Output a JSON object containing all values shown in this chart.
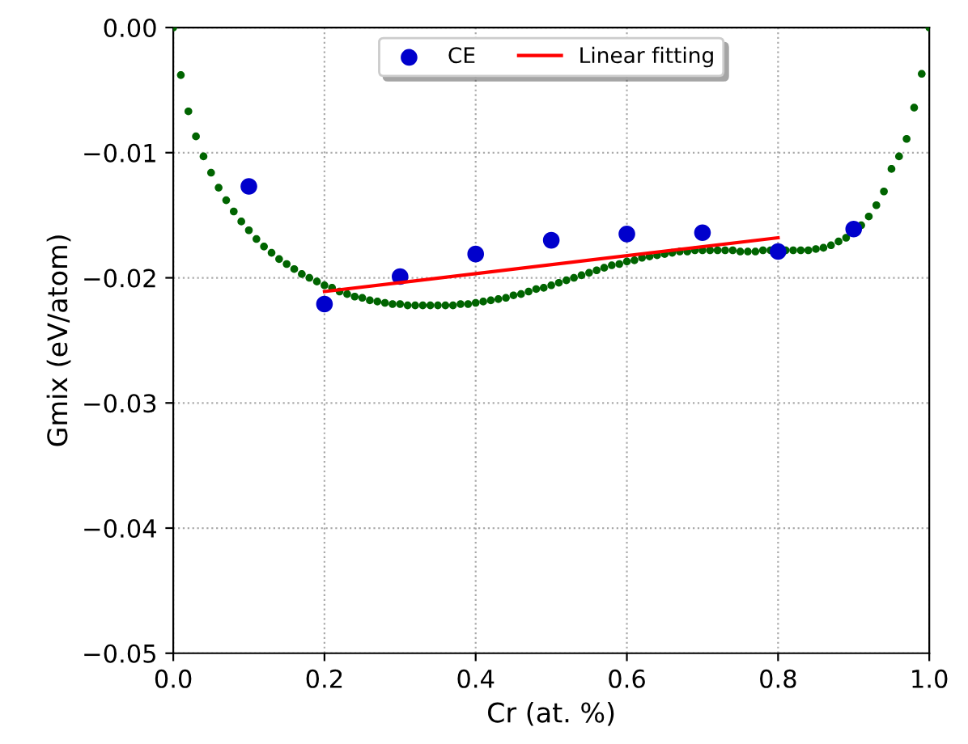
{
  "chart_data": {
    "type": "scatter",
    "xlabel": "Cr (at. %)",
    "ylabel": "Gmix (eV/atom)",
    "xlim": [
      0.0,
      1.0
    ],
    "xticks": [
      {
        "value": 0.0,
        "label": "0.0"
      },
      {
        "value": 0.2,
        "label": "0.2"
      },
      {
        "value": 0.4,
        "label": "0.4"
      },
      {
        "value": 0.6,
        "label": "0.6"
      },
      {
        "value": 0.8,
        "label": "0.8"
      },
      {
        "value": 1.0,
        "label": "1.0"
      }
    ],
    "ylim": [
      -0.05,
      0.0
    ],
    "yticks": [
      {
        "value": -0.05,
        "label": "−0.05"
      },
      {
        "value": -0.04,
        "label": "−0.04"
      },
      {
        "value": -0.03,
        "label": "−0.03"
      },
      {
        "value": -0.02,
        "label": "−0.02"
      },
      {
        "value": -0.01,
        "label": "−0.01"
      },
      {
        "value": 0.0,
        "label": "0.00"
      }
    ],
    "grid": true,
    "legend": "top",
    "series": [
      {
        "name": "CE",
        "marker": "circle",
        "color": "#0000cc",
        "x": [
          0.1,
          0.2,
          0.3,
          0.4,
          0.5,
          0.6,
          0.7,
          0.8,
          0.9
        ],
        "values": [
          -0.0127,
          -0.0221,
          -0.0199,
          -0.0181,
          -0.017,
          -0.0165,
          -0.0164,
          -0.0179,
          -0.0161
        ]
      },
      {
        "name": "Linear fitting",
        "type": "line",
        "color": "#ff0000",
        "line_style": "solid",
        "x": [
          0.2,
          0.8
        ],
        "values": [
          -0.0211,
          -0.0168
        ]
      },
      {
        "marker": "circle",
        "color": "#006400",
        "x": [
          0.0,
          0.01,
          0.02,
          0.03,
          0.04,
          0.05,
          0.06,
          0.07,
          0.08,
          0.09,
          0.1,
          0.11,
          0.12,
          0.13,
          0.14,
          0.15,
          0.16,
          0.17,
          0.18,
          0.19,
          0.2,
          0.21,
          0.22,
          0.23,
          0.24,
          0.25,
          0.26,
          0.27,
          0.28,
          0.29,
          0.3,
          0.31,
          0.32,
          0.33,
          0.34,
          0.35,
          0.36,
          0.37,
          0.38,
          0.39,
          0.4,
          0.41,
          0.42,
          0.43,
          0.44,
          0.45,
          0.46,
          0.47,
          0.48,
          0.49,
          0.5,
          0.51,
          0.52,
          0.53,
          0.54,
          0.55,
          0.56,
          0.57,
          0.58,
          0.59,
          0.6,
          0.61,
          0.62,
          0.63,
          0.64,
          0.65,
          0.66,
          0.67,
          0.68,
          0.69,
          0.7,
          0.71,
          0.72,
          0.73,
          0.74,
          0.75,
          0.76,
          0.77,
          0.78,
          0.79,
          0.8,
          0.81,
          0.82,
          0.83,
          0.84,
          0.85,
          0.86,
          0.87,
          0.88,
          0.89,
          0.9,
          0.91,
          0.92,
          0.93,
          0.94,
          0.95,
          0.96,
          0.97,
          0.98,
          0.99,
          1.0
        ],
        "values": [
          0.0,
          -0.0038,
          -0.0067,
          -0.0087,
          -0.0103,
          -0.0116,
          -0.0128,
          -0.0138,
          -0.0147,
          -0.0155,
          -0.0162,
          -0.0169,
          -0.0175,
          -0.018,
          -0.0185,
          -0.0189,
          -0.0193,
          -0.0197,
          -0.02,
          -0.0203,
          -0.0206,
          -0.0208,
          -0.0211,
          -0.0213,
          -0.0215,
          -0.0216,
          -0.0218,
          -0.0219,
          -0.022,
          -0.0221,
          -0.0221,
          -0.0222,
          -0.0222,
          -0.0222,
          -0.0222,
          -0.0222,
          -0.0222,
          -0.0222,
          -0.0221,
          -0.0221,
          -0.022,
          -0.0219,
          -0.0218,
          -0.0217,
          -0.0216,
          -0.0214,
          -0.0213,
          -0.0211,
          -0.0209,
          -0.0208,
          -0.0206,
          -0.0204,
          -0.0202,
          -0.02,
          -0.0198,
          -0.0196,
          -0.0194,
          -0.0192,
          -0.019,
          -0.0189,
          -0.0187,
          -0.0186,
          -0.0184,
          -0.0183,
          -0.0182,
          -0.0181,
          -0.018,
          -0.0179,
          -0.0179,
          -0.0178,
          -0.0178,
          -0.0178,
          -0.0178,
          -0.0178,
          -0.0178,
          -0.0179,
          -0.0179,
          -0.0179,
          -0.0178,
          -0.0178,
          null,
          -0.0178,
          -0.0178,
          -0.0178,
          -0.0178,
          -0.0177,
          -0.0176,
          -0.0174,
          -0.0171,
          -0.0168,
          null,
          -0.0158,
          -0.0151,
          -0.0142,
          -0.0131,
          -0.0113,
          -0.0103,
          -0.0089,
          -0.0064,
          -0.0037,
          0.0
        ]
      }
    ]
  }
}
